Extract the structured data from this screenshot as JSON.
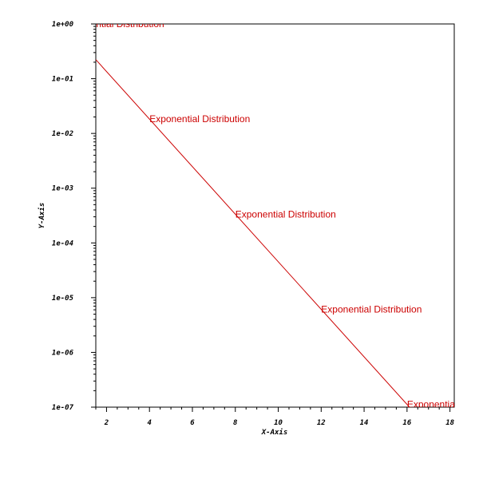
{
  "chart_data": {
    "type": "line",
    "xlabel": "X-Axis",
    "ylabel": "Y-Axis",
    "xlim": [
      1.5,
      18.2
    ],
    "ylim": [
      1e-07,
      1
    ],
    "y_scale": "log",
    "x_ticks": [
      2,
      4,
      6,
      8,
      10,
      12,
      14,
      16,
      18
    ],
    "x_tick_labels": [
      "2",
      "4",
      "6",
      "8",
      "10",
      "12",
      "14",
      "16",
      "18"
    ],
    "y_ticks": [
      1,
      0.1,
      0.01,
      0.001,
      0.0001,
      1e-05,
      1e-06,
      1e-07
    ],
    "y_tick_labels": [
      "1e+00",
      "1e-01",
      "1e-02",
      "1e-03",
      "1e-04",
      "1e-05",
      "1e-06",
      "1e-07"
    ],
    "grid": false,
    "series": [
      {
        "color": "#cc0000",
        "x": [
          1.5,
          16.4
        ],
        "y": [
          0.223,
          7.52e-08
        ]
      }
    ],
    "annotations": [
      {
        "text": "Exponential Distribution",
        "x": 0,
        "y": 1
      },
      {
        "text": "Exponential Distribution",
        "x": 4,
        "y": 0.0183
      },
      {
        "text": "Exponential Distribution",
        "x": 8,
        "y": 0.000335
      },
      {
        "text": "Exponential Distribution",
        "x": 12,
        "y": 6.14e-06
      },
      {
        "text": "Exponential Distribution",
        "x": 16,
        "y": 1.13e-07
      }
    ]
  }
}
